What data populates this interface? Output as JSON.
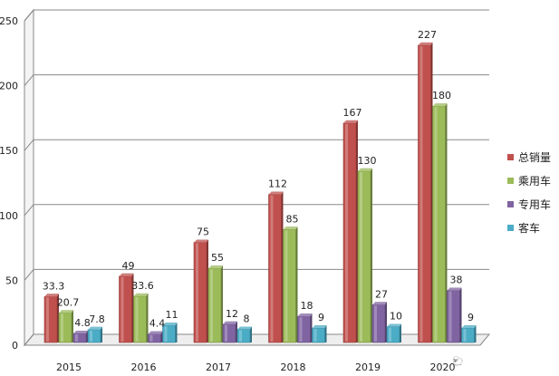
{
  "chart_data": {
    "type": "bar",
    "categories": [
      "2015",
      "2016",
      "2017",
      "2018",
      "2019",
      "2020"
    ],
    "ylim": [
      0,
      250
    ],
    "yticks": [
      "0",
      "50",
      "100",
      "150",
      "200",
      "250"
    ],
    "grid": true,
    "legend_position": "right",
    "series": [
      {
        "name": "总销量",
        "color": "#c0504d",
        "values": [
          33.3,
          49,
          75,
          112,
          167,
          227
        ],
        "labels": [
          "33.3",
          "49",
          "75",
          "112",
          "167",
          "227"
        ]
      },
      {
        "name": "乘用车",
        "color": "#9bbb59",
        "values": [
          20.7,
          33.6,
          55,
          85,
          130,
          180
        ],
        "labels": [
          "20.7",
          "33.6",
          "55",
          "85",
          "130",
          "180"
        ]
      },
      {
        "name": "专用车",
        "color": "#8064a2",
        "values": [
          4.8,
          4.4,
          12,
          18,
          27,
          38
        ],
        "labels": [
          "4.8",
          "4.4",
          "12",
          "18",
          "27",
          "38"
        ]
      },
      {
        "name": "客车",
        "color": "#4bacc6",
        "values": [
          7.8,
          11,
          8,
          9,
          10,
          9
        ],
        "labels": [
          "7.8",
          "11",
          "8",
          "9",
          "10",
          "9"
        ]
      }
    ]
  },
  "legend": {
    "items": [
      {
        "label": "总销量",
        "color": "#c0504d"
      },
      {
        "label": "乘用车",
        "color": "#9bbb59"
      },
      {
        "label": "专用车",
        "color": "#8064a2"
      },
      {
        "label": "客车",
        "color": "#4bacc6"
      }
    ]
  },
  "watermark": {
    "text": "🐑"
  }
}
